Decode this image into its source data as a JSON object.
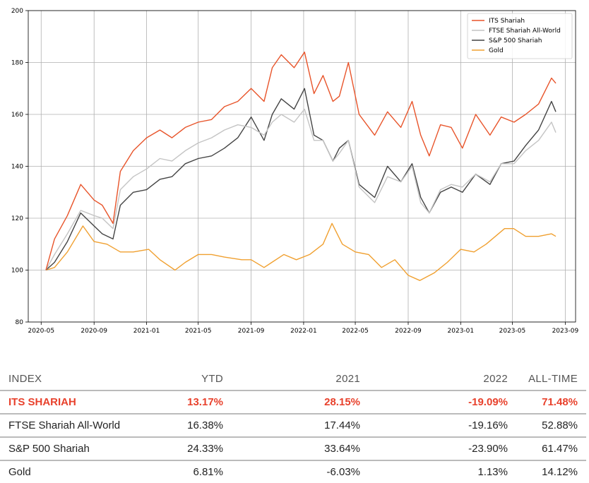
{
  "chart_data": {
    "type": "line",
    "title": "",
    "xlabel": "",
    "ylabel": "",
    "ylim": [
      80,
      200
    ],
    "yticks": [
      80,
      100,
      120,
      140,
      160,
      180,
      200
    ],
    "xlim": [
      "2020-04-01",
      "2023-09-25"
    ],
    "xticks": [
      "2020-05",
      "2020-09",
      "2021-01",
      "2021-05",
      "2021-09",
      "2022-01",
      "2022-05",
      "2022-09",
      "2023-01",
      "2023-05",
      "2023-09"
    ],
    "grid": true,
    "legend": "top-right",
    "series": [
      {
        "name": "ITS Shariah",
        "color": "#e8542a",
        "x": [
          "2020-05-12",
          "2020-06-01",
          "2020-07-01",
          "2020-08-01",
          "2020-09-01",
          "2020-09-20",
          "2020-10-15",
          "2020-11-01",
          "2020-12-01",
          "2021-01-01",
          "2021-02-01",
          "2021-03-01",
          "2021-04-01",
          "2021-05-01",
          "2021-06-01",
          "2021-07-01",
          "2021-08-01",
          "2021-09-01",
          "2021-10-01",
          "2021-10-20",
          "2021-11-10",
          "2021-12-10",
          "2022-01-03",
          "2022-01-25",
          "2022-02-15",
          "2022-03-10",
          "2022-03-25",
          "2022-04-15",
          "2022-05-10",
          "2022-06-15",
          "2022-07-15",
          "2022-08-15",
          "2022-09-10",
          "2022-09-30",
          "2022-10-20",
          "2022-11-15",
          "2022-12-10",
          "2023-01-05",
          "2023-02-05",
          "2023-03-10",
          "2023-04-05",
          "2023-05-05",
          "2023-06-01",
          "2023-07-01",
          "2023-07-31",
          "2023-08-10"
        ],
        "values": [
          100,
          112,
          121,
          133,
          127,
          125,
          118,
          138,
          146,
          151,
          154,
          151,
          155,
          157,
          158,
          163,
          165,
          170,
          165,
          178,
          183,
          178,
          184,
          168,
          175,
          165,
          167,
          180,
          160,
          152,
          161,
          155,
          165,
          152,
          144,
          156,
          155,
          147,
          160,
          152,
          159,
          157,
          160,
          164,
          174,
          172
        ]
      },
      {
        "name": "FTSE Shariah All-World",
        "color": "#c4c4c4",
        "x": [
          "2020-05-12",
          "2020-06-01",
          "2020-07-01",
          "2020-08-01",
          "2020-09-01",
          "2020-09-20",
          "2020-10-15",
          "2020-11-01",
          "2020-12-01",
          "2021-01-01",
          "2021-02-01",
          "2021-03-01",
          "2021-04-01",
          "2021-05-01",
          "2021-06-01",
          "2021-07-01",
          "2021-08-01",
          "2021-09-01",
          "2021-10-01",
          "2021-10-20",
          "2021-11-10",
          "2021-12-10",
          "2022-01-03",
          "2022-01-25",
          "2022-02-15",
          "2022-03-10",
          "2022-03-25",
          "2022-04-15",
          "2022-05-10",
          "2022-06-15",
          "2022-07-15",
          "2022-08-15",
          "2022-09-10",
          "2022-09-30",
          "2022-10-20",
          "2022-11-15",
          "2022-12-10",
          "2023-01-05",
          "2023-02-05",
          "2023-03-10",
          "2023-04-05",
          "2023-05-05",
          "2023-06-01",
          "2023-07-01",
          "2023-07-31",
          "2023-08-10"
        ],
        "values": [
          100,
          106,
          114,
          123,
          121,
          120,
          116,
          131,
          136,
          139,
          143,
          142,
          146,
          149,
          151,
          154,
          156,
          155,
          152,
          157,
          160,
          157,
          162,
          150,
          150,
          142,
          145,
          150,
          132,
          126,
          136,
          134,
          140,
          126,
          122,
          131,
          133,
          132,
          137,
          134,
          141,
          141,
          146,
          150,
          157,
          153
        ]
      },
      {
        "name": "S&P 500 Shariah",
        "color": "#444444",
        "x": [
          "2020-05-12",
          "2020-06-01",
          "2020-07-01",
          "2020-08-01",
          "2020-09-01",
          "2020-09-20",
          "2020-10-15",
          "2020-11-01",
          "2020-12-01",
          "2021-01-01",
          "2021-02-01",
          "2021-03-01",
          "2021-04-01",
          "2021-05-01",
          "2021-06-01",
          "2021-07-01",
          "2021-08-01",
          "2021-09-01",
          "2021-10-01",
          "2021-10-20",
          "2021-11-10",
          "2021-12-10",
          "2022-01-03",
          "2022-01-25",
          "2022-02-15",
          "2022-03-10",
          "2022-03-25",
          "2022-04-15",
          "2022-05-10",
          "2022-06-15",
          "2022-07-15",
          "2022-08-15",
          "2022-09-10",
          "2022-09-30",
          "2022-10-20",
          "2022-11-15",
          "2022-12-10",
          "2023-01-05",
          "2023-02-05",
          "2023-03-10",
          "2023-04-05",
          "2023-05-05",
          "2023-06-01",
          "2023-07-01",
          "2023-07-31",
          "2023-08-10"
        ],
        "values": [
          100,
          103,
          111,
          122,
          117,
          114,
          112,
          125,
          130,
          131,
          135,
          136,
          141,
          143,
          144,
          147,
          151,
          159,
          150,
          160,
          166,
          162,
          170,
          152,
          150,
          142,
          147,
          150,
          133,
          128,
          140,
          134,
          141,
          128,
          122,
          130,
          132,
          130,
          137,
          133,
          141,
          142,
          148,
          154,
          165,
          161
        ]
      },
      {
        "name": "Gold",
        "color": "#f0a030",
        "x": [
          "2020-05-12",
          "2020-06-01",
          "2020-07-01",
          "2020-08-06",
          "2020-09-01",
          "2020-10-01",
          "2020-11-01",
          "2020-12-01",
          "2021-01-06",
          "2021-02-01",
          "2021-03-08",
          "2021-04-01",
          "2021-05-01",
          "2021-06-01",
          "2021-07-01",
          "2021-08-10",
          "2021-09-01",
          "2021-10-01",
          "2021-11-16",
          "2021-12-15",
          "2022-01-15",
          "2022-02-15",
          "2022-03-08",
          "2022-04-01",
          "2022-05-01",
          "2022-06-01",
          "2022-07-01",
          "2022-08-01",
          "2022-09-01",
          "2022-09-28",
          "2022-11-01",
          "2022-12-01",
          "2023-01-01",
          "2023-02-01",
          "2023-03-01",
          "2023-04-13",
          "2023-05-04",
          "2023-06-01",
          "2023-07-01",
          "2023-07-31",
          "2023-08-10"
        ],
        "values": [
          100,
          101,
          107,
          117,
          111,
          110,
          107,
          107,
          108,
          104,
          100,
          103,
          106,
          106,
          105,
          104,
          104,
          101,
          106,
          104,
          106,
          110,
          118,
          110,
          107,
          106,
          101,
          104,
          98,
          96,
          99,
          103,
          108,
          107,
          110,
          116,
          116,
          113,
          113,
          114,
          113
        ]
      }
    ]
  },
  "table": {
    "headers": [
      "INDEX",
      "YTD",
      "2021",
      "2022",
      "ALL-TIME"
    ],
    "rows": [
      {
        "cells": [
          "ITS SHARIAH",
          "13.17%",
          "28.15%",
          "-19.09%",
          "71.48%"
        ],
        "highlight": true
      },
      {
        "cells": [
          "FTSE Shariah All-World",
          "16.38%",
          "17.44%",
          "-19.16%",
          "52.88%"
        ],
        "highlight": false
      },
      {
        "cells": [
          "S&P 500 Shariah",
          "24.33%",
          "33.64%",
          "-23.90%",
          "61.47%"
        ],
        "highlight": false
      },
      {
        "cells": [
          "Gold",
          "6.81%",
          "-6.03%",
          "1.13%",
          "14.12%"
        ],
        "highlight": false
      }
    ]
  }
}
